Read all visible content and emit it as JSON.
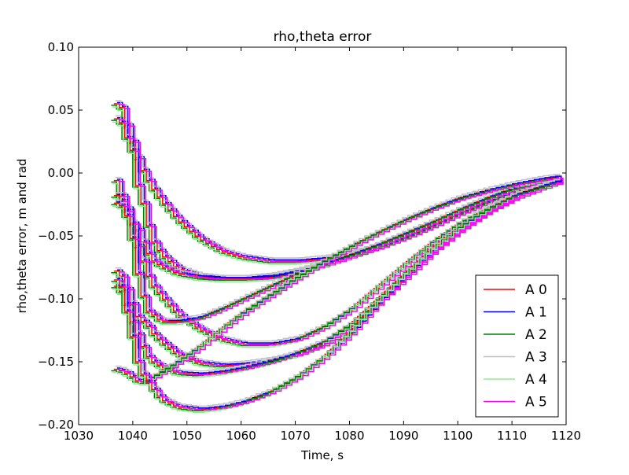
{
  "chart_data": {
    "type": "line",
    "title": "rho,theta error",
    "xlabel": "Time, s",
    "ylabel": "rho,theta error, m and rad",
    "xlim": [
      1030,
      1120
    ],
    "ylim": [
      -0.2,
      0.1
    ],
    "xticks": [
      1030,
      1040,
      1050,
      1060,
      1070,
      1080,
      1090,
      1100,
      1110,
      1120
    ],
    "yticks": [
      -0.2,
      -0.15,
      -0.1,
      -0.05,
      0.0,
      0.05,
      0.1
    ],
    "xtick_labels": [
      "1030",
      "1040",
      "1050",
      "1060",
      "1070",
      "1080",
      "1090",
      "1100",
      "1110",
      "1120"
    ],
    "ytick_labels": [
      "−0.20",
      "−0.15",
      "−0.10",
      "−0.05",
      "0.00",
      "0.05",
      "0.10"
    ],
    "grid": false,
    "step_plot": true,
    "legend": {
      "placement": "bottom-right"
    },
    "series": [
      {
        "name": "A 0",
        "color": "#ff0000"
      },
      {
        "name": "A 1",
        "color": "#0000ff"
      },
      {
        "name": "A 2",
        "color": "#008000"
      },
      {
        "name": "A 3",
        "color": "#c0c0c0"
      },
      {
        "name": "A 4",
        "color": "#90ee90"
      },
      {
        "name": "A 5",
        "color": "#ff00ff"
      }
    ],
    "curves": [
      {
        "x": [
          1036.5,
          1037.5,
          1038.5,
          1039.5,
          1040.5,
          1041.5,
          1042.5,
          1043.5,
          1045,
          1048,
          1052,
          1056,
          1060,
          1065,
          1070,
          1075,
          1080,
          1085,
          1090,
          1095,
          1100,
          1105,
          1110,
          1115,
          1118.5
        ],
        "y": [
          0.055,
          0.052,
          0.038,
          0.025,
          0.012,
          0.002,
          -0.006,
          -0.013,
          -0.022,
          -0.037,
          -0.052,
          -0.062,
          -0.067,
          -0.07,
          -0.07,
          -0.068,
          -0.064,
          -0.058,
          -0.05,
          -0.041,
          -0.031,
          -0.022,
          -0.014,
          -0.008,
          -0.005
        ]
      },
      {
        "x": [
          1036.5,
          1037.5,
          1038.5,
          1039.5,
          1040.5,
          1041.5,
          1042.5,
          1043.5,
          1045,
          1048,
          1052,
          1056,
          1060,
          1065,
          1070,
          1075,
          1080,
          1085,
          1090,
          1095,
          1100,
          1105,
          1110,
          1115,
          1118.5
        ],
        "y": [
          0.043,
          0.04,
          0.028,
          0.018,
          -0.01,
          -0.024,
          -0.042,
          -0.055,
          -0.065,
          -0.076,
          -0.082,
          -0.084,
          -0.084,
          -0.082,
          -0.078,
          -0.072,
          -0.066,
          -0.058,
          -0.049,
          -0.039,
          -0.029,
          -0.02,
          -0.012,
          -0.007,
          -0.004
        ]
      },
      {
        "x": [
          1036.5,
          1037.5,
          1038.5,
          1039.5,
          1040.5,
          1041.5,
          1042.5,
          1043.5,
          1045,
          1048,
          1052,
          1056,
          1060,
          1065,
          1070,
          1075,
          1080,
          1085,
          1090,
          1095,
          1100,
          1105,
          1110,
          1115,
          1118.5
        ],
        "y": [
          -0.006,
          -0.018,
          -0.028,
          -0.04,
          -0.045,
          -0.055,
          -0.064,
          -0.07,
          -0.074,
          -0.08,
          -0.083,
          -0.084,
          -0.084,
          -0.083,
          -0.079,
          -0.073,
          -0.066,
          -0.059,
          -0.051,
          -0.042,
          -0.032,
          -0.023,
          -0.015,
          -0.009,
          -0.006
        ]
      },
      {
        "x": [
          1036.5,
          1037.5,
          1038.5,
          1039.5,
          1040.5,
          1041.5,
          1042.5,
          1043.5,
          1045,
          1048,
          1052,
          1056,
          1060,
          1065,
          1070,
          1075,
          1080,
          1085,
          1090,
          1095,
          1100,
          1105,
          1110,
          1115,
          1118.5
        ],
        "y": [
          -0.018,
          -0.022,
          -0.03,
          -0.04,
          -0.058,
          -0.07,
          -0.082,
          -0.09,
          -0.098,
          -0.112,
          -0.124,
          -0.132,
          -0.136,
          -0.136,
          -0.132,
          -0.122,
          -0.108,
          -0.09,
          -0.072,
          -0.055,
          -0.04,
          -0.028,
          -0.018,
          -0.011,
          -0.006
        ]
      },
      {
        "x": [
          1036.5,
          1037.5,
          1038.5,
          1039.5,
          1040.5,
          1041.5,
          1042.5,
          1043.5,
          1045,
          1048,
          1052,
          1056,
          1060,
          1065,
          1070,
          1075,
          1080,
          1085,
          1090,
          1095,
          1100,
          1105,
          1110,
          1115,
          1118.5
        ],
        "y": [
          -0.024,
          -0.026,
          -0.034,
          -0.052,
          -0.08,
          -0.098,
          -0.11,
          -0.113,
          -0.118,
          -0.118,
          -0.115,
          -0.108,
          -0.1,
          -0.09,
          -0.08,
          -0.072,
          -0.065,
          -0.057,
          -0.048,
          -0.039,
          -0.029,
          -0.02,
          -0.012,
          -0.007,
          -0.004
        ]
      },
      {
        "x": [
          1036.5,
          1037.5,
          1038.5,
          1039.5,
          1040.5,
          1041.5,
          1042.5,
          1043.5,
          1045,
          1048,
          1052,
          1056,
          1060,
          1065,
          1070,
          1075,
          1080,
          1085,
          1090,
          1095,
          1100,
          1105,
          1110,
          1115,
          1118.5
        ],
        "y": [
          -0.078,
          -0.082,
          -0.092,
          -0.104,
          -0.114,
          -0.118,
          -0.122,
          -0.128,
          -0.134,
          -0.144,
          -0.151,
          -0.153,
          -0.152,
          -0.149,
          -0.144,
          -0.136,
          -0.122,
          -0.102,
          -0.082,
          -0.062,
          -0.045,
          -0.031,
          -0.02,
          -0.012,
          -0.007
        ]
      },
      {
        "x": [
          1036.5,
          1037.5,
          1038.5,
          1039.5,
          1040.5,
          1041.5,
          1042.5,
          1043.5,
          1045,
          1048,
          1052,
          1056,
          1060,
          1065,
          1070,
          1075,
          1080,
          1085,
          1090,
          1095,
          1100,
          1105,
          1110,
          1115,
          1118.5
        ],
        "y": [
          -0.09,
          -0.094,
          -0.104,
          -0.118,
          -0.128,
          -0.138,
          -0.146,
          -0.15,
          -0.154,
          -0.159,
          -0.16,
          -0.158,
          -0.155,
          -0.15,
          -0.143,
          -0.134,
          -0.12,
          -0.1,
          -0.08,
          -0.061,
          -0.044,
          -0.03,
          -0.019,
          -0.011,
          -0.006
        ]
      },
      {
        "x": [
          1036.5,
          1037.5,
          1038.5,
          1039.5,
          1040.5,
          1041.5,
          1042.5,
          1043.5,
          1045,
          1048,
          1052,
          1056,
          1060,
          1065,
          1070,
          1075,
          1080,
          1085,
          1090,
          1095,
          1100,
          1105,
          1110,
          1115,
          1118.5
        ],
        "y": [
          -0.156,
          -0.157,
          -0.159,
          -0.162,
          -0.165,
          -0.166,
          -0.164,
          -0.162,
          -0.158,
          -0.15,
          -0.138,
          -0.124,
          -0.111,
          -0.097,
          -0.083,
          -0.07,
          -0.058,
          -0.047,
          -0.037,
          -0.028,
          -0.02,
          -0.014,
          -0.009,
          -0.005,
          -0.003
        ]
      },
      {
        "x": [
          1036.5,
          1037.5,
          1038.5,
          1039.5,
          1040.5,
          1041.5,
          1042.5,
          1043.5,
          1045,
          1048,
          1052,
          1056,
          1060,
          1065,
          1070,
          1075,
          1080,
          1085,
          1090,
          1095,
          1100,
          1105,
          1110,
          1115,
          1118.5
        ],
        "y": [
          -0.085,
          -0.09,
          -0.11,
          -0.13,
          -0.15,
          -0.16,
          -0.166,
          -0.172,
          -0.18,
          -0.186,
          -0.188,
          -0.186,
          -0.182,
          -0.174,
          -0.162,
          -0.146,
          -0.126,
          -0.102,
          -0.08,
          -0.06,
          -0.043,
          -0.029,
          -0.018,
          -0.011,
          -0.006
        ]
      }
    ]
  }
}
